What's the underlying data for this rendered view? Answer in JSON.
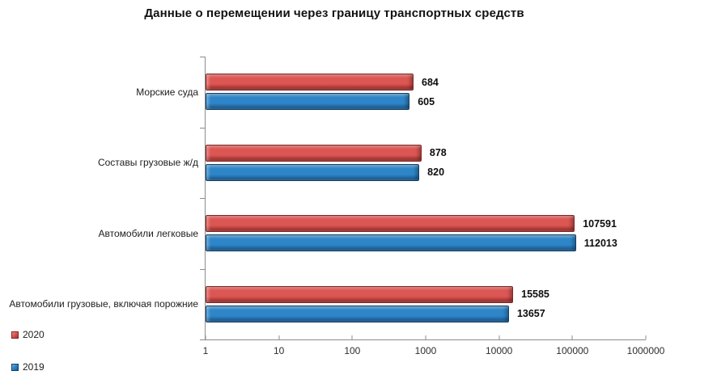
{
  "chart_data": {
    "type": "bar",
    "orientation": "horizontal",
    "title": "Данные о перемещении через границу транспортных средств",
    "x_scale": "log10",
    "x_range_log": [
      0,
      6
    ],
    "x_ticks": [
      "1",
      "10",
      "100",
      "1000",
      "10000",
      "100000",
      "1000000"
    ],
    "grid": false,
    "value_labels": true,
    "legend_position": "bottom-left",
    "categories": [
      "Морские суда",
      "Составы грузовые ж/д",
      "Автомобили легковые",
      "Автомобили грузовые, включая порожние"
    ],
    "series": [
      {
        "name": "2020",
        "values": [
          684,
          878,
          107591,
          15585
        ],
        "colors": {
          "light": "#ef8a87",
          "main": "#dc5653",
          "dark": "#a33432",
          "border": "#7e2523"
        }
      },
      {
        "name": "2019",
        "values": [
          605,
          820,
          112013,
          13657
        ],
        "colors": {
          "light": "#74b1e0",
          "main": "#2e86c8",
          "dark": "#1c5e96",
          "border": "#123f66"
        }
      }
    ],
    "axis_color": "#8c8c8c"
  }
}
